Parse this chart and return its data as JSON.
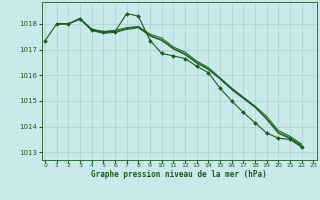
{
  "title": "Graphe pression niveau de la mer (hPa)",
  "bg_color": "#c8eaea",
  "grid_color": "#b0d0d0",
  "line_color": "#1a5c1a",
  "xlim": [
    -0.3,
    23.3
  ],
  "ylim": [
    1012.7,
    1018.85
  ],
  "yticks": [
    1013,
    1014,
    1015,
    1016,
    1017,
    1018
  ],
  "xticks": [
    0,
    1,
    2,
    3,
    4,
    5,
    6,
    7,
    8,
    9,
    10,
    11,
    12,
    13,
    14,
    15,
    16,
    17,
    18,
    19,
    20,
    21,
    22,
    23
  ],
  "series_main_x": [
    0,
    1,
    2,
    3,
    4,
    5,
    6,
    7,
    8,
    9,
    10,
    11,
    12,
    13,
    14,
    15,
    16,
    17,
    18,
    19,
    20,
    21,
    22
  ],
  "series_main": [
    1017.35,
    1018.0,
    1018.0,
    1018.2,
    1017.75,
    1017.7,
    1017.7,
    1018.4,
    1018.3,
    1017.35,
    1016.85,
    1016.75,
    1016.65,
    1016.35,
    1016.1,
    1015.5,
    1015.0,
    1014.55,
    1014.15,
    1013.75,
    1013.55,
    1013.5,
    1013.2
  ],
  "series_a_x": [
    1,
    2,
    3,
    4,
    5,
    6,
    7,
    8,
    9,
    10,
    11,
    12,
    13,
    14,
    15,
    16,
    17,
    18,
    19,
    20,
    21,
    22
  ],
  "series_a": [
    1018.0,
    1018.0,
    1018.2,
    1017.8,
    1017.7,
    1017.75,
    1017.85,
    1017.9,
    1017.6,
    1017.45,
    1017.1,
    1016.9,
    1016.55,
    1016.3,
    1015.9,
    1015.5,
    1015.15,
    1014.8,
    1014.4,
    1013.85,
    1013.62,
    1013.32
  ],
  "series_b_x": [
    1,
    2,
    3,
    4,
    5,
    6,
    7,
    8,
    9,
    10,
    11,
    12,
    13,
    14,
    15,
    16,
    17,
    18,
    19,
    20,
    21,
    22
  ],
  "series_b": [
    1018.0,
    1018.0,
    1018.22,
    1017.77,
    1017.66,
    1017.7,
    1017.82,
    1017.88,
    1017.55,
    1017.38,
    1017.05,
    1016.83,
    1016.5,
    1016.25,
    1015.88,
    1015.47,
    1015.12,
    1014.78,
    1014.32,
    1013.78,
    1013.57,
    1013.27
  ],
  "series_c_x": [
    1,
    2,
    3,
    4,
    5,
    6,
    7,
    8,
    9,
    10,
    11,
    12,
    13,
    14,
    15,
    16,
    17,
    18,
    19,
    20,
    21,
    22
  ],
  "series_c": [
    1018.0,
    1018.0,
    1018.18,
    1017.74,
    1017.63,
    1017.67,
    1017.78,
    1017.85,
    1017.52,
    1017.35,
    1017.02,
    1016.8,
    1016.47,
    1016.22,
    1015.85,
    1015.44,
    1015.09,
    1014.75,
    1014.28,
    1013.74,
    1013.53,
    1013.23
  ]
}
